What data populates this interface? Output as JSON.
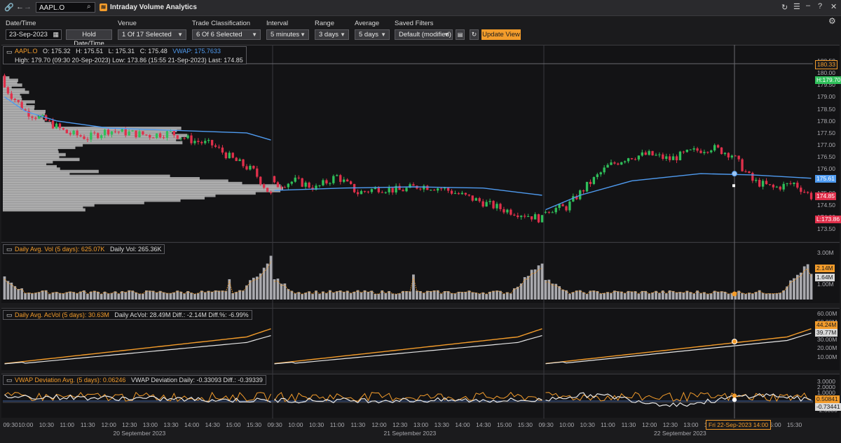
{
  "topbar": {
    "ric_value": "AAPL.O",
    "app_title": "Intraday Volume Analytics",
    "app_icon_glyph": "≋"
  },
  "controls": {
    "datetime_label": "Date/Time",
    "datetime_value": "23-Sep-2023",
    "hold_label": "Hold Date/Time",
    "venue_label": "Venue",
    "venue_value": "1 Of 17 Selected",
    "trade_label": "Trade Classification",
    "trade_value": "6 Of 6 Selected",
    "interval_label": "Interval",
    "interval_value": "5 minutes",
    "range_label": "Range",
    "range_value": "3 days",
    "average_label": "Average",
    "average_value": "5 days",
    "filters_label": "Saved Filters",
    "filters_value": "Default (modified)",
    "update_label": "Update View"
  },
  "price_panel": {
    "symbol": "AAPL.O",
    "open": "O: 175.32",
    "high": "H: 175.51",
    "low": "L: 175.31",
    "close": "C: 175.48",
    "vwap": "VWAP: 175.7633",
    "line2": "High: 179.70 (09:30 20-Sep-2023)   Low: 173.86 (15:55 21-Sep-2023)   Last: 174.85",
    "y_ticks": [
      "180.50",
      "180.00",
      "179.50",
      "179.00",
      "178.50",
      "178.00",
      "177.50",
      "177.00",
      "176.50",
      "176.00",
      "175.50",
      "175.00",
      "174.50",
      "174.00",
      "173.50"
    ],
    "tag_cross": "180.33",
    "tag_high": "H:179.70",
    "tag_vwap": "175.61",
    "tag_last": "174.85",
    "tag_low": "L:173.86"
  },
  "vol_panel": {
    "label1": "Daily Avg. Vol (5 days): 625.07K",
    "label2": "Daily Vol: 265.36K",
    "y_ticks": [
      "3.00M",
      "2.00M",
      "1.00M"
    ],
    "tag_avg": "2.14M",
    "tag_daily": "1.64M"
  },
  "acvol_panel": {
    "label1": "Daily Avg. AcVol (5 days): 30.63M",
    "label2": "Daily AcVol: 28.49M   Diff.: -2.14M   Diff.%: -6.99%",
    "y_ticks": [
      "60.00M",
      "50.00M",
      "40.00M",
      "30.00M",
      "20.00M",
      "10.00M"
    ],
    "tag_avg": "44.24M",
    "tag_daily": "39.77M"
  },
  "dev_panel": {
    "label1": "VWAP Deviation Avg. (5 days): 0.06246",
    "label2": "VWAP Deviation Daily: -0.33093   Diff.: -0.39339",
    "y_ticks": [
      "3.0000",
      "2.0000",
      "1.0000",
      "0.0000",
      "-1.0000",
      "-2.0000"
    ],
    "tag_avg": "0.50841",
    "tag_daily": "-0.73441"
  },
  "xaxis": {
    "times": [
      "09:30",
      "10:00",
      "10:30",
      "11:00",
      "11:30",
      "12:00",
      "12:30",
      "13:00",
      "13:30",
      "14:00",
      "14:30",
      "15:00",
      "15:30",
      "09:30",
      "10:00",
      "10:30",
      "11:00",
      "11:30",
      "12:00",
      "12:30",
      "13:00",
      "13:30",
      "14:00",
      "14:30",
      "15:00",
      "15:30",
      "09:30",
      "10:00",
      "10:30",
      "11:00",
      "11:30",
      "12:00",
      "12:30",
      "13:00",
      "13:30",
      "14:00",
      "14:30",
      "15:00",
      "15:30"
    ],
    "dates": [
      "20 September 2023",
      "21 September 2023",
      "22 September 2023"
    ],
    "cursor_tag": "Fri 22-Sep-2023 14:00"
  },
  "colors": {
    "up": "#2fbf5a",
    "down": "#e0304b",
    "vwap": "#4f9bf0",
    "accent": "#f39c2b",
    "profile": "#b9b9b9"
  },
  "chart_data": [
    {
      "type": "line",
      "title": "AAPL.O",
      "description": "5-minute candlesticks with VWAP line and volume-at-price profile, 20-22 Sep 2023",
      "ylim": [
        173.3,
        180.8
      ],
      "series": [
        {
          "name": "Price (approx close)",
          "x": [
            "20-Sep 09:30",
            "20-Sep 10:00",
            "20-Sep 11:00",
            "20-Sep 12:00",
            "20-Sep 13:00",
            "20-Sep 14:00",
            "20-Sep 14:30",
            "20-Sep 15:00",
            "20-Sep 15:30",
            "20-Sep 15:55",
            "21-Sep 09:30",
            "21-Sep 10:00",
            "21-Sep 11:00",
            "21-Sep 12:00",
            "21-Sep 13:00",
            "21-Sep 14:00",
            "21-Sep 15:00",
            "21-Sep 15:55",
            "22-Sep 09:30",
            "22-Sep 10:00",
            "22-Sep 11:00",
            "22-Sep 12:00",
            "22-Sep 12:30",
            "22-Sep 13:00",
            "22-Sep 13:30",
            "22-Sep 14:00",
            "22-Sep 15:00",
            "22-Sep 15:55"
          ],
          "values": [
            179.3,
            178.2,
            177.3,
            177.5,
            177.5,
            177.3,
            176.9,
            176.6,
            175.9,
            174.8,
            175.3,
            175.8,
            175.1,
            175.2,
            175.3,
            174.9,
            174.3,
            173.9,
            174.4,
            175.6,
            176.5,
            176.7,
            176.9,
            176.4,
            175.6,
            175.3,
            175.2,
            174.85
          ]
        },
        {
          "name": "VWAP",
          "x": [
            "20-Sep 09:30",
            "20-Sep 12:00",
            "20-Sep 14:00",
            "20-Sep 15:30",
            "20-Sep 15:55",
            "21-Sep 09:30",
            "21-Sep 12:00",
            "21-Sep 15:30",
            "21-Sep 15:55",
            "22-Sep 09:30",
            "22-Sep 11:00",
            "22-Sep 13:00",
            "22-Sep 14:00",
            "22-Sep 15:55"
          ],
          "values": [
            179.0,
            177.6,
            177.6,
            177.4,
            175.3,
            175.1,
            175.3,
            175.2,
            174.8,
            174.3,
            175.5,
            175.8,
            175.75,
            175.61
          ]
        }
      ]
    },
    {
      "type": "bar",
      "title": "Volume",
      "ylim": [
        0,
        3.2
      ],
      "series": [
        {
          "name": "Daily Vol (M)",
          "x": [
            "20-Sep 09:30",
            "20-Sep 12:00",
            "20-Sep 15:55",
            "21-Sep 09:30",
            "21-Sep 12:00",
            "21-Sep 15:55",
            "22-Sep 09:30",
            "22-Sep 12:00",
            "22-Sep 15:55"
          ],
          "values": [
            1.0,
            0.3,
            2.8,
            0.9,
            0.3,
            2.3,
            1.0,
            0.3,
            1.6
          ]
        },
        {
          "name": "Daily Avg. Vol (5 days) (M)",
          "x": [
            "20-Sep 09:30",
            "20-Sep 12:00",
            "20-Sep 15:55"
          ],
          "values": [
            0.9,
            0.3,
            2.1
          ]
        }
      ]
    },
    {
      "type": "line",
      "title": "Accumulated Volume",
      "ylim": [
        0,
        63
      ],
      "series": [
        {
          "name": "Daily AcVol (M)",
          "x": [
            "09:30",
            "12:00",
            "15:55"
          ],
          "values": [
            0,
            18,
            40
          ]
        },
        {
          "name": "Daily Avg. AcVol (M)",
          "x": [
            "09:30",
            "12:00",
            "15:55"
          ],
          "values": [
            0,
            20,
            44
          ]
        }
      ]
    },
    {
      "type": "line",
      "title": "VWAP Deviation",
      "ylim": [
        -2.5,
        3.3
      ],
      "series": [
        {
          "name": "VWAP Deviation Daily",
          "x": [
            "20-Sep 09:30",
            "21-Sep 09:30",
            "22-Sep 09:30",
            "22-Sep 15:55"
          ],
          "values": [
            0.6,
            -0.8,
            -0.2,
            -0.73
          ]
        },
        {
          "name": "VWAP Deviation Avg.",
          "x": [
            "20-Sep 09:30",
            "21-Sep 09:30",
            "22-Sep 09:30",
            "22-Sep 15:55"
          ],
          "values": [
            0.3,
            0.2,
            0.4,
            0.51
          ]
        }
      ]
    }
  ]
}
